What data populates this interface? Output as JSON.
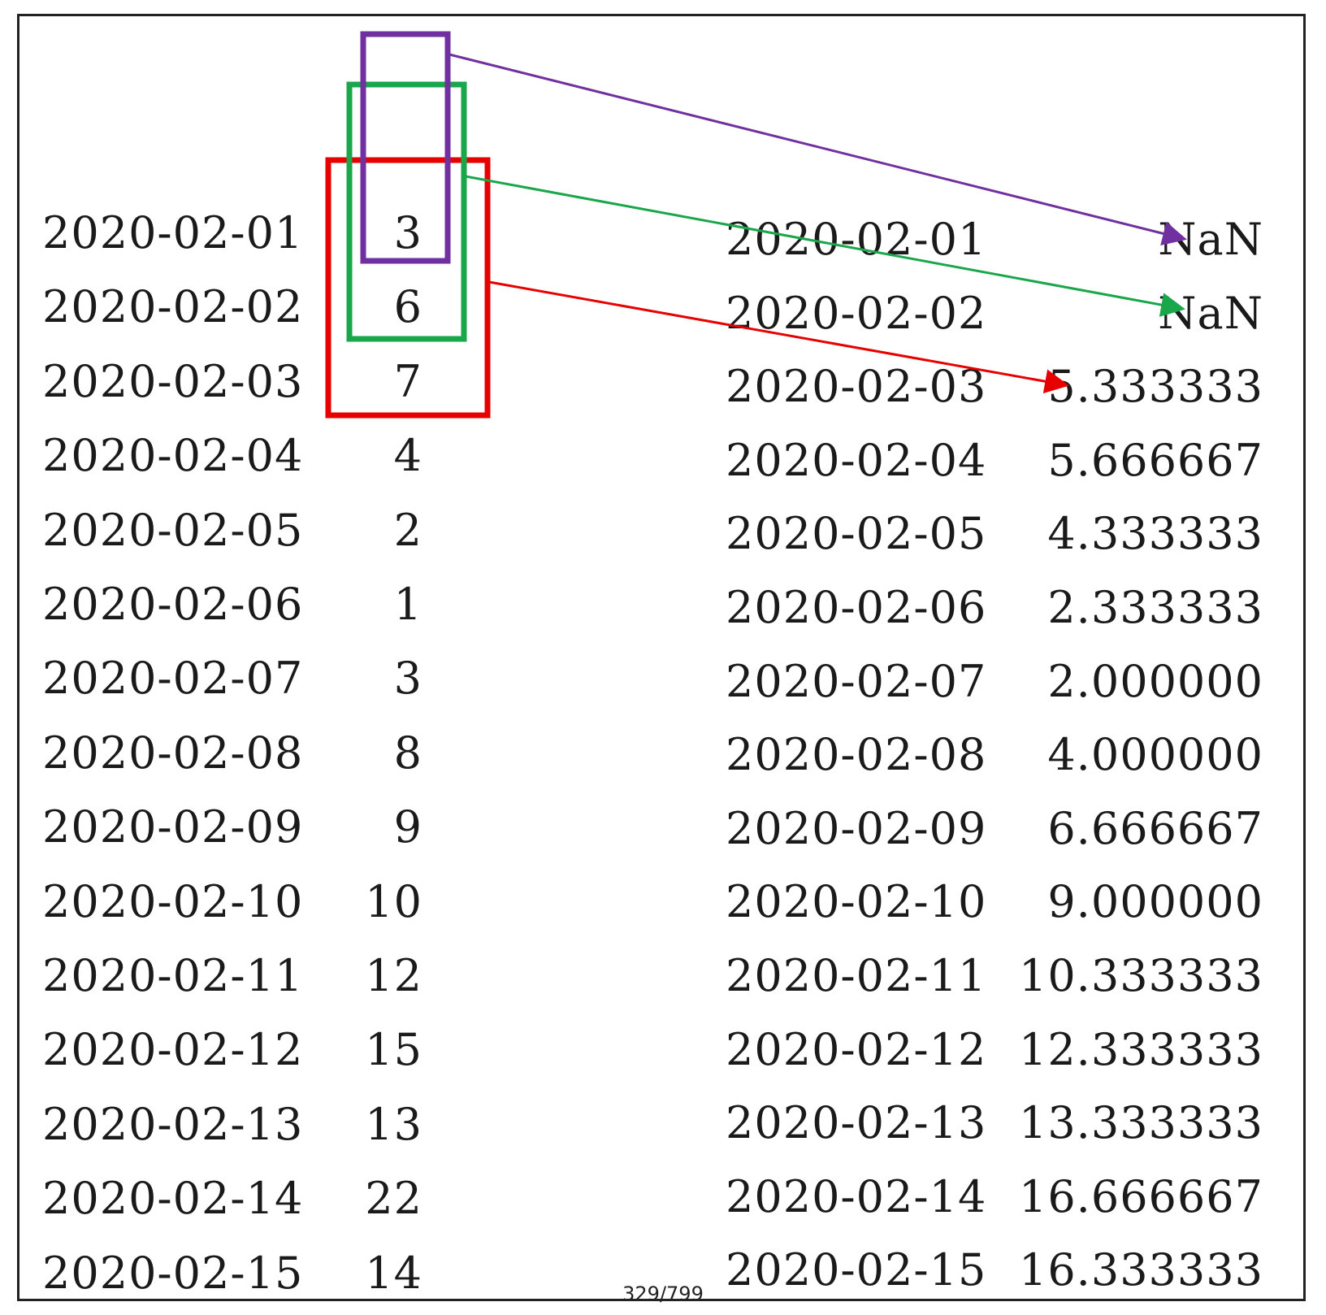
{
  "input_table": {
    "rows": [
      {
        "date": "2020-02-01",
        "value": "3"
      },
      {
        "date": "2020-02-02",
        "value": "6"
      },
      {
        "date": "2020-02-03",
        "value": "7"
      },
      {
        "date": "2020-02-04",
        "value": "4"
      },
      {
        "date": "2020-02-05",
        "value": "2"
      },
      {
        "date": "2020-02-06",
        "value": "1"
      },
      {
        "date": "2020-02-07",
        "value": "3"
      },
      {
        "date": "2020-02-08",
        "value": "8"
      },
      {
        "date": "2020-02-09",
        "value": "9"
      },
      {
        "date": "2020-02-10",
        "value": "10"
      },
      {
        "date": "2020-02-11",
        "value": "12"
      },
      {
        "date": "2020-02-12",
        "value": "15"
      },
      {
        "date": "2020-02-13",
        "value": "13"
      },
      {
        "date": "2020-02-14",
        "value": "22"
      },
      {
        "date": "2020-02-15",
        "value": "14"
      }
    ]
  },
  "output_table": {
    "rows": [
      {
        "date": "2020-02-01",
        "value": "NaN"
      },
      {
        "date": "2020-02-02",
        "value": "NaN"
      },
      {
        "date": "2020-02-03",
        "value": "5.333333"
      },
      {
        "date": "2020-02-04",
        "value": "5.666667"
      },
      {
        "date": "2020-02-05",
        "value": "4.333333"
      },
      {
        "date": "2020-02-06",
        "value": "2.333333"
      },
      {
        "date": "2020-02-07",
        "value": "2.000000"
      },
      {
        "date": "2020-02-08",
        "value": "4.000000"
      },
      {
        "date": "2020-02-09",
        "value": "6.666667"
      },
      {
        "date": "2020-02-10",
        "value": "9.000000"
      },
      {
        "date": "2020-02-11",
        "value": "10.333333"
      },
      {
        "date": "2020-02-12",
        "value": "12.333333"
      },
      {
        "date": "2020-02-13",
        "value": "13.333333"
      },
      {
        "date": "2020-02-14",
        "value": "16.666667"
      },
      {
        "date": "2020-02-15",
        "value": "16.333333"
      }
    ]
  },
  "windows": [
    {
      "color": "#7030a0",
      "target": "NaN"
    },
    {
      "color": "#1aa64a",
      "target": "NaN"
    },
    {
      "color": "#e60000",
      "target": "5.333333"
    }
  ],
  "page_number": "329/799"
}
